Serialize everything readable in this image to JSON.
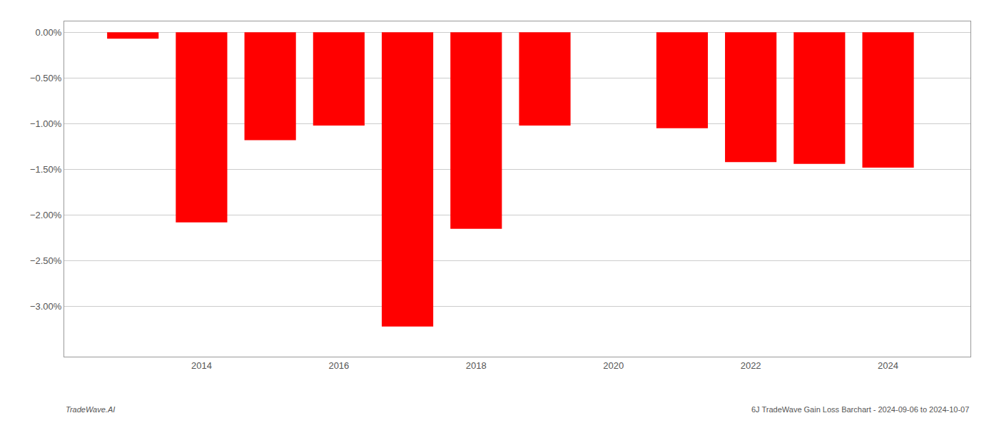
{
  "chart_data": {
    "type": "bar",
    "x": [
      2013,
      2014,
      2015,
      2016,
      2017,
      2018,
      2019,
      2021,
      2022,
      2023,
      2024
    ],
    "values": [
      -0.07,
      -2.08,
      -1.18,
      -1.02,
      -3.22,
      -2.15,
      -1.02,
      -1.05,
      -1.42,
      -1.44,
      -1.48
    ],
    "color": "#ff0000",
    "xlim": [
      2012.0,
      2025.2
    ],
    "xticks": [
      2014,
      2016,
      2018,
      2020,
      2022,
      2024
    ],
    "ylim": [
      -3.55,
      0.12
    ],
    "yticks": [
      {
        "value": 0.0,
        "label": "0.00%"
      },
      {
        "value": -0.5,
        "label": "−0.50%"
      },
      {
        "value": -1.0,
        "label": "−1.00%"
      },
      {
        "value": -1.5,
        "label": "−1.50%"
      },
      {
        "value": -2.0,
        "label": "−2.00%"
      },
      {
        "value": -2.5,
        "label": "−2.50%"
      },
      {
        "value": -3.0,
        "label": "−3.00%"
      }
    ],
    "grid": "y",
    "annotations": [
      "TradeWave.AI",
      "6J TradeWave Gain Loss Barchart - 2024-09-06 to 2024-10-07"
    ]
  }
}
